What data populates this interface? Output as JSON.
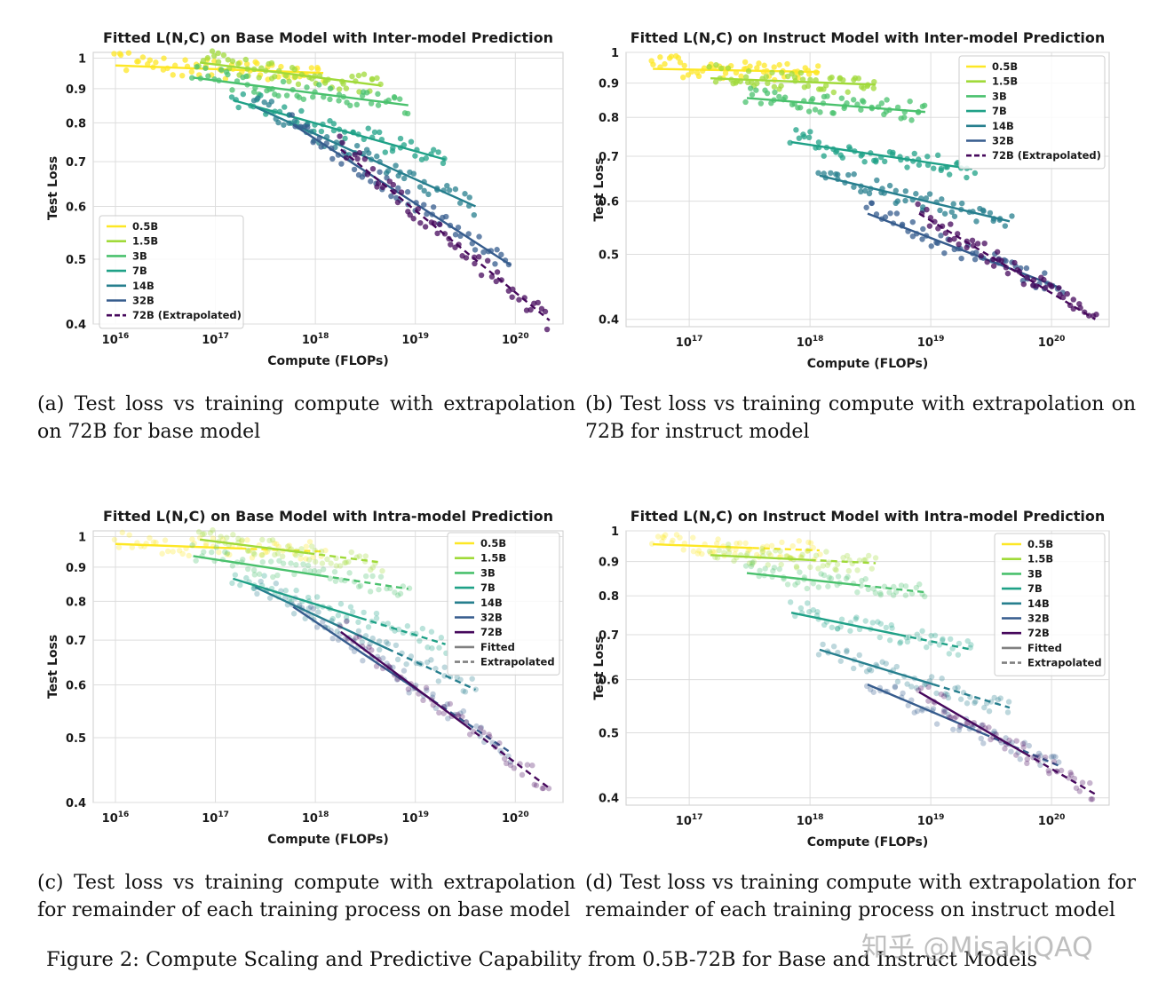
{
  "figure_caption": "Figure 2: Compute Scaling and Predictive Capability from 0.5B-72B for Base and Instruct Models",
  "watermark": "知乎 @MisakiQAQ",
  "captions": [
    "(a) Test loss vs training compute with extrapolation on 72B for base model",
    "(b) Test loss vs training compute with extrapolation on 72B for instruct model",
    "(c) Test loss vs training compute with extrapolation for remainder of each training process on base model",
    "(d) Test loss vs training compute with extrapolation for remainder of each training process on instruct model"
  ],
  "chart_data": [
    {
      "type": "scatter",
      "title": "Fitted L(N,C) on Base Model with Inter-model Prediction",
      "xlabel": "Compute (FLOPs)",
      "ylabel": "Test Loss",
      "x_scale": "log",
      "y_scale": "log",
      "xlim": [
        6000000000000000.0,
        3e+20
      ],
      "ylim": [
        0.4,
        1.02
      ],
      "x_ticks": [
        "10^16",
        "10^17",
        "10^18",
        "10^19",
        "10^20"
      ],
      "y_ticks": [
        "0.4",
        "0.5",
        "0.6",
        "0.7",
        "0.8",
        "0.9",
        "1"
      ],
      "grid": true,
      "legend": {
        "position": "lower-left",
        "entries": [
          "0.5B",
          "1.5B",
          "3B",
          "7B",
          "14B",
          "32B",
          "72B (Extrapolated)"
        ]
      },
      "series": [
        {
          "name": "0.5B",
          "color": "#fde725",
          "range": [
            1e+16,
            1.2e+18
          ],
          "fit": [
            0.975,
            0.95
          ],
          "style": "solid",
          "points_alpha": 0.75
        },
        {
          "name": "1.5B",
          "color": "#a0da39",
          "range": [
            7e+16,
            4.5e+18
          ],
          "fit": [
            0.985,
            0.91
          ],
          "style": "solid",
          "points_alpha": 0.75
        },
        {
          "name": "3B",
          "color": "#4ac16d",
          "range": [
            6e+16,
            8.5e+18
          ],
          "fit": [
            0.935,
            0.85
          ],
          "style": "solid",
          "points_alpha": 0.75
        },
        {
          "name": "7B",
          "color": "#1fa187",
          "range": [
            1.5e+17,
            2e+19
          ],
          "fit": [
            0.865,
            0.705
          ],
          "style": "solid",
          "points_alpha": 0.75
        },
        {
          "name": "14B",
          "color": "#277f8e",
          "range": [
            2.5e+17,
            4e+19
          ],
          "fit": [
            0.845,
            0.6
          ],
          "style": "solid",
          "points_alpha": 0.75
        },
        {
          "name": "32B",
          "color": "#365c8d",
          "range": [
            6e+17,
            9e+19
          ],
          "fit": [
            0.795,
            0.49
          ],
          "style": "solid",
          "points_alpha": 0.75
        },
        {
          "name": "72B (Extrapolated)",
          "color": "#46085c",
          "range": [
            1.8e+18,
            2.2e+20
          ],
          "fit": [
            0.73,
            0.405
          ],
          "style": "dashed",
          "points_alpha": 0.75
        }
      ]
    },
    {
      "type": "scatter",
      "title": "Fitted L(N,C) on Instruct Model with Inter-model Prediction",
      "xlabel": "Compute (FLOPs)",
      "ylabel": "Test Loss",
      "x_scale": "log",
      "y_scale": "log",
      "xlim": [
        3e+16,
        3e+20
      ],
      "ylim": [
        0.39,
        1.0
      ],
      "x_ticks": [
        "10^17",
        "10^18",
        "10^19",
        "10^20"
      ],
      "y_ticks": [
        "0.4",
        "0.5",
        "0.6",
        "0.7",
        "0.8",
        "0.9",
        "1"
      ],
      "grid": true,
      "legend": {
        "position": "top-right",
        "entries": [
          "0.5B",
          "1.5B",
          "3B",
          "7B",
          "14B",
          "32B",
          "72B (Extrapolated)"
        ]
      },
      "series": [
        {
          "name": "0.5B",
          "color": "#fde725",
          "range": [
            5e+16,
            1.2e+18
          ],
          "fit": [
            0.945,
            0.935
          ],
          "style": "solid",
          "points_alpha": 0.75
        },
        {
          "name": "1.5B",
          "color": "#a0da39",
          "range": [
            1.5e+17,
            3.5e+18
          ],
          "fit": [
            0.915,
            0.895
          ],
          "style": "solid",
          "points_alpha": 0.75
        },
        {
          "name": "3B",
          "color": "#4ac16d",
          "range": [
            3e+17,
            9e+18
          ],
          "fit": [
            0.855,
            0.815
          ],
          "style": "solid",
          "points_alpha": 0.75
        },
        {
          "name": "7B",
          "color": "#1fa187",
          "range": [
            7e+17,
            2.2e+19
          ],
          "fit": [
            0.735,
            0.67
          ],
          "style": "solid",
          "points_alpha": 0.75
        },
        {
          "name": "14B",
          "color": "#277f8e",
          "range": [
            1.2e+18,
            4.5e+19
          ],
          "fit": [
            0.655,
            0.56
          ],
          "style": "solid",
          "points_alpha": 0.75
        },
        {
          "name": "32B",
          "color": "#365c8d",
          "range": [
            3e+18,
            1.2e+20
          ],
          "fit": [
            0.575,
            0.445
          ],
          "style": "solid",
          "points_alpha": 0.75
        },
        {
          "name": "72B (Extrapolated)",
          "color": "#46085c",
          "range": [
            8e+18,
            2.3e+20
          ],
          "fit": [
            0.575,
            0.4
          ],
          "style": "dashed",
          "points_alpha": 0.75
        }
      ]
    },
    {
      "type": "scatter",
      "title": "Fitted L(N,C) on Base Model with Intra-model Prediction",
      "xlabel": "Compute (FLOPs)",
      "ylabel": "Test Loss",
      "x_scale": "log",
      "y_scale": "log",
      "xlim": [
        6000000000000000.0,
        3e+20
      ],
      "ylim": [
        0.4,
        1.02
      ],
      "x_ticks": [
        "10^16",
        "10^17",
        "10^18",
        "10^19",
        "10^20"
      ],
      "y_ticks": [
        "0.4",
        "0.5",
        "0.6",
        "0.7",
        "0.8",
        "0.9",
        "1"
      ],
      "grid": true,
      "legend": {
        "position": "top-right",
        "entries": [
          "0.5B",
          "1.5B",
          "3B",
          "7B",
          "14B",
          "32B",
          "72B",
          "Fitted",
          "Extrapolated"
        ]
      },
      "series": [
        {
          "name": "0.5B",
          "color": "#fde725",
          "range": [
            1e+16,
            1.2e+18
          ],
          "fit": [
            0.975,
            0.95
          ],
          "style": "fit+extrapolated",
          "points_alpha": 0.3
        },
        {
          "name": "1.5B",
          "color": "#a0da39",
          "range": [
            7e+16,
            4.5e+18
          ],
          "fit": [
            0.99,
            0.915
          ],
          "style": "fit+extrapolated",
          "points_alpha": 0.3
        },
        {
          "name": "3B",
          "color": "#4ac16d",
          "range": [
            6e+16,
            8.5e+18
          ],
          "fit": [
            0.935,
            0.835
          ],
          "style": "fit+extrapolated",
          "points_alpha": 0.3
        },
        {
          "name": "7B",
          "color": "#1fa187",
          "range": [
            1.5e+17,
            2e+19
          ],
          "fit": [
            0.865,
            0.69
          ],
          "style": "fit+extrapolated",
          "points_alpha": 0.3
        },
        {
          "name": "14B",
          "color": "#277f8e",
          "range": [
            2.5e+17,
            4e+19
          ],
          "fit": [
            0.84,
            0.59
          ],
          "style": "fit+extrapolated",
          "points_alpha": 0.3
        },
        {
          "name": "32B",
          "color": "#365c8d",
          "range": [
            6e+17,
            9e+19
          ],
          "fit": [
            0.785,
            0.475
          ],
          "style": "fit+extrapolated",
          "points_alpha": 0.3
        },
        {
          "name": "72B",
          "color": "#46085c",
          "range": [
            1.8e+18,
            2.2e+20
          ],
          "fit": [
            0.72,
            0.42
          ],
          "style": "fit+extrapolated",
          "points_alpha": 0.3
        }
      ]
    },
    {
      "type": "scatter",
      "title": "Fitted L(N,C) on Instruct Model with Intra-model Prediction",
      "xlabel": "Compute (FLOPs)",
      "ylabel": "Test Loss",
      "x_scale": "log",
      "y_scale": "log",
      "xlim": [
        3e+16,
        3e+20
      ],
      "ylim": [
        0.39,
        1.0
      ],
      "x_ticks": [
        "10^17",
        "10^18",
        "10^19",
        "10^20"
      ],
      "y_ticks": [
        "0.4",
        "0.5",
        "0.6",
        "0.7",
        "0.8",
        "0.9",
        "1"
      ],
      "grid": true,
      "legend": {
        "position": "top-right",
        "entries": [
          "0.5B",
          "1.5B",
          "3B",
          "7B",
          "14B",
          "32B",
          "72B",
          "Fitted",
          "Extrapolated"
        ]
      },
      "series": [
        {
          "name": "0.5B",
          "color": "#fde725",
          "range": [
            5e+16,
            1.2e+18
          ],
          "fit": [
            0.955,
            0.935
          ],
          "style": "fit+extrapolated",
          "points_alpha": 0.3
        },
        {
          "name": "1.5B",
          "color": "#a0da39",
          "range": [
            1.5e+17,
            3.5e+18
          ],
          "fit": [
            0.92,
            0.895
          ],
          "style": "fit+extrapolated",
          "points_alpha": 0.3
        },
        {
          "name": "3B",
          "color": "#4ac16d",
          "range": [
            3e+17,
            9e+18
          ],
          "fit": [
            0.865,
            0.81
          ],
          "style": "fit+extrapolated",
          "points_alpha": 0.3
        },
        {
          "name": "7B",
          "color": "#1fa187",
          "range": [
            7e+17,
            2.2e+19
          ],
          "fit": [
            0.755,
            0.665
          ],
          "style": "fit+extrapolated",
          "points_alpha": 0.3
        },
        {
          "name": "14B",
          "color": "#277f8e",
          "range": [
            1.2e+18,
            4.5e+19
          ],
          "fit": [
            0.665,
            0.545
          ],
          "style": "fit+extrapolated",
          "points_alpha": 0.3
        },
        {
          "name": "32B",
          "color": "#365c8d",
          "range": [
            3e+18,
            1.2e+20
          ],
          "fit": [
            0.59,
            0.445
          ],
          "style": "fit+extrapolated",
          "points_alpha": 0.3
        },
        {
          "name": "72B",
          "color": "#46085c",
          "range": [
            8e+18,
            2.3e+20
          ],
          "fit": [
            0.575,
            0.405
          ],
          "style": "fit+extrapolated",
          "points_alpha": 0.3
        }
      ]
    }
  ]
}
